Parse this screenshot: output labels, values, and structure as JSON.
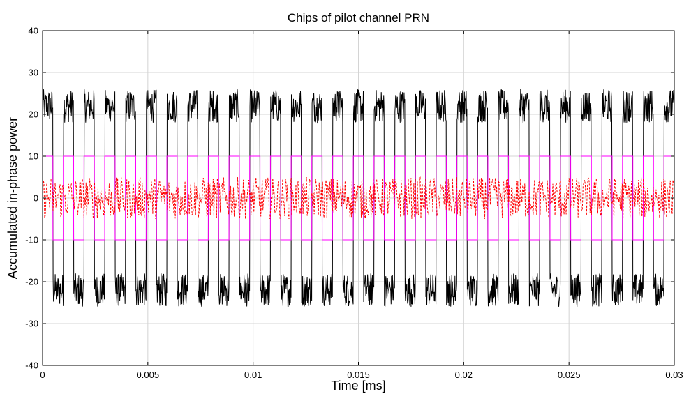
{
  "chart_data": {
    "type": "line",
    "title": "Chips of pilot channel PRN",
    "xlabel": "Time [ms]",
    "ylabel": "Accumulated in-phase power",
    "xlim": [
      0,
      0.03
    ],
    "ylim": [
      -40,
      40
    ],
    "xticks": [
      0,
      0.005,
      0.01,
      0.015,
      0.02,
      0.025,
      0.03
    ],
    "xtick_labels": [
      "0",
      "0.005",
      "0.01",
      "0.015",
      "0.02",
      "0.025",
      "0.03"
    ],
    "yticks": [
      -40,
      -30,
      -20,
      -10,
      0,
      10,
      20,
      30,
      40
    ],
    "ytick_labels": [
      "-40",
      "-30",
      "-20",
      "-10",
      "0",
      "10",
      "20",
      "30",
      "40"
    ],
    "grid": true,
    "legend": "none",
    "series": [
      {
        "color": "#000000",
        "style": "solid",
        "levels": [
          22,
          -22,
          22,
          -22,
          22,
          -22,
          22,
          -22,
          22,
          -22,
          22,
          -22,
          22,
          -22,
          22,
          -22,
          22,
          -22,
          22,
          -22,
          22,
          -22,
          22,
          -22,
          22,
          -22,
          22,
          -22,
          22,
          -22,
          22,
          -22,
          22,
          -22,
          22,
          -22,
          22,
          -22,
          22,
          -22,
          22,
          -22,
          22,
          -22,
          22,
          -22,
          22,
          -22,
          22,
          -22,
          22,
          -22,
          22,
          -22,
          22,
          -22,
          22,
          -22,
          22,
          -22,
          22
        ],
        "ripple_amplitude": 4
      },
      {
        "color": "#ff00ff",
        "style": "solid",
        "chip_values": [
          10,
          -10,
          10,
          -10,
          10,
          -10,
          10,
          -10,
          10,
          -10,
          10,
          -10,
          10,
          -10,
          10,
          -10,
          10,
          -10,
          10,
          -10,
          10,
          -10,
          10,
          -10,
          10,
          -10,
          10,
          -10,
          10,
          -10,
          10,
          -10,
          10,
          -10,
          10,
          -10,
          10,
          -10,
          10,
          -10,
          10,
          -10,
          10,
          -10,
          10,
          -10,
          10,
          -10,
          10,
          -10,
          10,
          -10,
          10,
          -10,
          10,
          -10,
          10,
          -10,
          10,
          -10,
          10
        ]
      },
      {
        "color": "#ff0000",
        "style": "dashed",
        "amplitude": 5
      }
    ]
  }
}
